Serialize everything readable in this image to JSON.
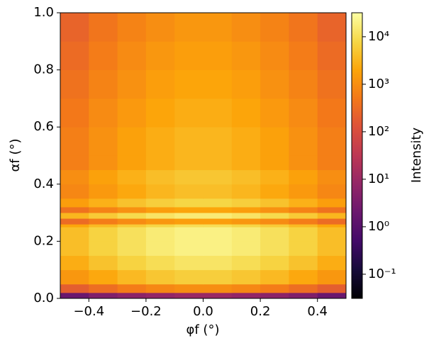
{
  "chart_data": {
    "type": "heatmap",
    "x_label": "φf (°)",
    "y_label": "αf (°)",
    "colorbar_label": "Intensity",
    "colormap": "inferno",
    "color_scale": "log",
    "xlim": [
      -0.5,
      0.5
    ],
    "xticks": [
      {
        "value": -0.4,
        "label": "−0.4"
      },
      {
        "value": -0.2,
        "label": "−0.2"
      },
      {
        "value": 0,
        "label": "0.0"
      },
      0.2,
      0.4
    ],
    "ylim": [
      0,
      1
    ],
    "yticks": [
      {
        "value": 0,
        "label": "0.0"
      },
      0.2,
      0.4,
      0.6,
      0.8,
      {
        "value": 1,
        "label": "1.0"
      }
    ],
    "clim": [
      0.031,
      32000
    ],
    "cticks": [
      {
        "value": 0.1,
        "label": "10⁻¹"
      },
      {
        "value": 1,
        "label": "10⁰"
      },
      {
        "value": 10,
        "label": "10¹"
      },
      {
        "value": 100,
        "label": "10²"
      },
      {
        "value": 1000,
        "label": "10³"
      },
      {
        "value": 10000,
        "label": "10⁴"
      }
    ],
    "x_bins": [
      -0.5,
      -0.4,
      -0.3,
      -0.2,
      -0.1,
      0,
      0.1,
      0.2,
      0.3,
      0.4,
      0.5
    ],
    "y_bins": [
      0,
      0.02,
      0.05,
      0.1,
      0.15,
      0.2,
      0.25,
      0.26,
      0.28,
      0.3,
      0.32,
      0.35,
      0.4,
      0.45,
      0.5,
      0.6,
      0.7,
      0.8,
      0.9,
      1.0
    ],
    "z": [
      [
        2,
        4,
        6,
        8,
        10,
        10,
        8,
        6,
        4,
        2
      ],
      [
        200,
        350,
        560,
        800,
        1000,
        1000,
        800,
        560,
        350,
        200
      ],
      [
        1300,
        2200,
        3500,
        5000,
        6300,
        6300,
        5000,
        3500,
        2200,
        1300
      ],
      [
        2500,
        4500,
        7100,
        10000,
        12600,
        12600,
        10000,
        7100,
        4500,
        2500
      ],
      [
        4000,
        7100,
        11000,
        16000,
        20000,
        20000,
        16000,
        11000,
        7100,
        4000
      ],
      [
        4000,
        7100,
        11000,
        16000,
        20000,
        20000,
        16000,
        11000,
        7100,
        4000
      ],
      [
        2000,
        3500,
        5600,
        7900,
        10000,
        10000,
        7900,
        5600,
        3500,
        2000
      ],
      [
        320,
        560,
        900,
        1300,
        1600,
        1600,
        1300,
        900,
        560,
        320
      ],
      [
        3200,
        5600,
        8900,
        12600,
        16000,
        16000,
        12600,
        8900,
        5600,
        3200
      ],
      [
        400,
        700,
        1100,
        1600,
        2000,
        2000,
        1600,
        1100,
        700,
        400
      ],
      [
        1600,
        2800,
        4500,
        6300,
        7900,
        7900,
        6300,
        4500,
        2800,
        1600
      ],
      [
        800,
        1400,
        2200,
        3200,
        4000,
        4000,
        3200,
        2200,
        1400,
        800
      ],
      [
        1000,
        1800,
        2800,
        4000,
        5000,
        5000,
        4000,
        2800,
        1800,
        1000
      ],
      [
        630,
        1100,
        1800,
        2500,
        3200,
        3200,
        2500,
        1800,
        1100,
        630
      ],
      [
        630,
        1100,
        1800,
        2500,
        3200,
        3200,
        2500,
        1800,
        1100,
        630
      ],
      [
        500,
        900,
        1400,
        2000,
        2500,
        2500,
        2000,
        1400,
        900,
        500
      ],
      [
        400,
        700,
        1100,
        1600,
        2000,
        2000,
        1600,
        1100,
        700,
        400
      ],
      [
        320,
        560,
        900,
        1300,
        1600,
        1600,
        1300,
        900,
        560,
        320
      ],
      [
        250,
        450,
        700,
        1000,
        1300,
        1300,
        1000,
        700,
        450,
        250
      ]
    ]
  }
}
